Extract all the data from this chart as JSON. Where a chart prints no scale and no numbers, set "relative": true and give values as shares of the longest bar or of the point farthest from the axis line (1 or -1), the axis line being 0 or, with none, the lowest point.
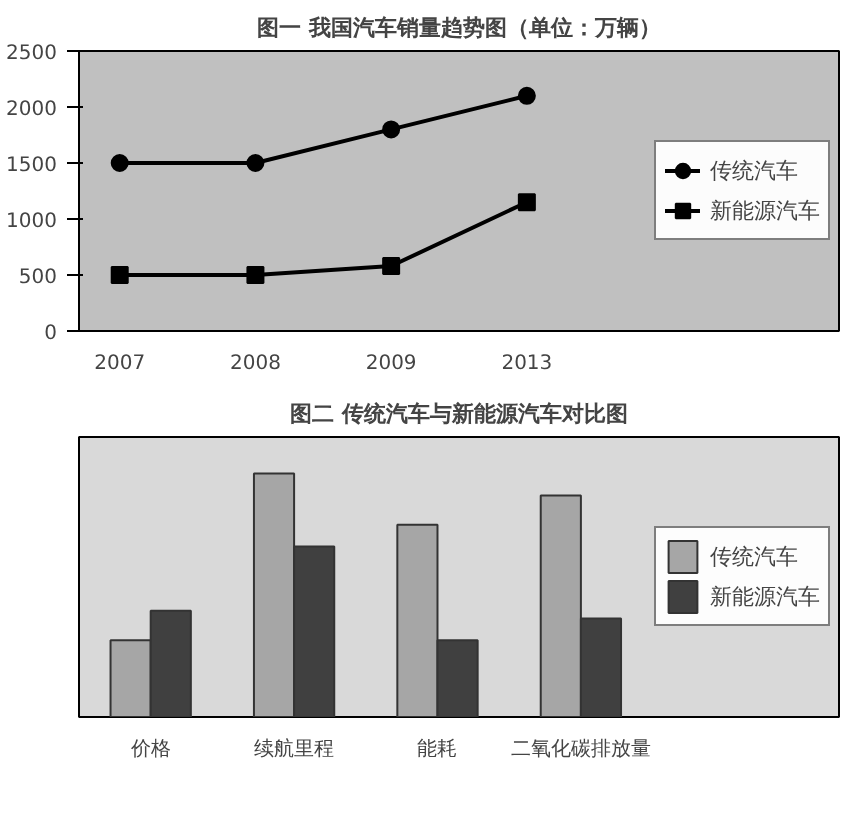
{
  "chart_data": [
    {
      "type": "line",
      "title": "图一 我国汽车销量趋势图（单位：万辆）",
      "categories": [
        "2007",
        "2008",
        "2009",
        "2013"
      ],
      "ylim": [
        0,
        2500
      ],
      "yticks": [
        0,
        500,
        1000,
        1500,
        2000,
        2500
      ],
      "grid": false,
      "legend": "right",
      "series": [
        {
          "name": "传统汽车",
          "color": "#000000",
          "marker": "circle",
          "values": [
            1500,
            1500,
            1800,
            2100
          ]
        },
        {
          "name": "新能源汽车",
          "color": "#000000",
          "marker": "square",
          "values": [
            500,
            500,
            580,
            1150
          ]
        }
      ]
    },
    {
      "type": "bar",
      "title": "图二 传统汽车与新能源汽车对比图",
      "categories": [
        "价格",
        "续航里程",
        "能耗",
        "二氧化碳排放量"
      ],
      "relative": true,
      "grid": false,
      "legend": "right",
      "series": [
        {
          "name": "传统汽车",
          "color": "#a6a6a6",
          "values": [
            0.315,
            1,
            0.79,
            0.91
          ]
        },
        {
          "name": "新能源汽车",
          "color": "#404040",
          "values": [
            0.436,
            0.7,
            0.315,
            0.405
          ]
        }
      ]
    }
  ]
}
